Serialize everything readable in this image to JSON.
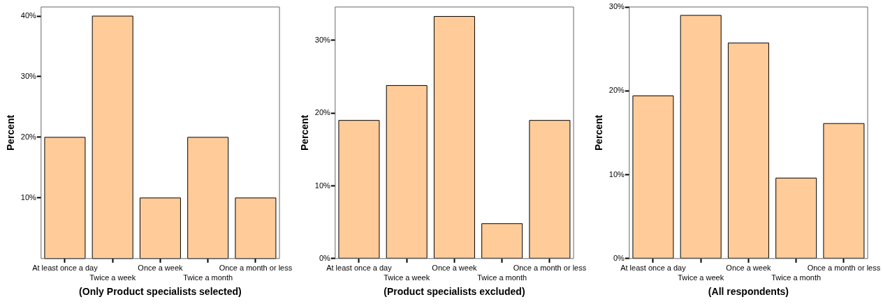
{
  "chart_data": [
    {
      "type": "bar",
      "xlabel": "(Only Product specialists selected)",
      "ylabel": "Percent",
      "categories": [
        "At least once a day",
        "Twice a week",
        "Once a week",
        "Twice a month",
        "Once a month or less"
      ],
      "values": [
        20,
        40,
        10,
        20,
        10
      ],
      "color": "#ffcc99",
      "ylim": [
        0,
        41.5
      ],
      "yticks": [
        {
          "value": 10,
          "label": "10%"
        },
        {
          "value": 20,
          "label": "20%"
        },
        {
          "value": 30,
          "label": "30%"
        },
        {
          "value": 40,
          "label": "40%"
        }
      ],
      "grid": false,
      "legend": false
    },
    {
      "type": "bar",
      "xlabel": "(Product specialists excluded)",
      "ylabel": "Percent",
      "categories": [
        "At least once a day",
        "Twice a week",
        "Once a week",
        "Twice a month",
        "Once a month or less"
      ],
      "values": [
        19.0,
        23.8,
        33.3,
        4.8,
        19.0
      ],
      "color": "#ffcc99",
      "ylim": [
        0,
        34.6
      ],
      "yticks": [
        {
          "value": 0,
          "label": "0%"
        },
        {
          "value": 10,
          "label": "10%"
        },
        {
          "value": 20,
          "label": "20%"
        },
        {
          "value": 30,
          "label": "30%"
        }
      ],
      "grid": false,
      "legend": false
    },
    {
      "type": "bar",
      "xlabel": "(All respondents)",
      "ylabel": "Percent",
      "categories": [
        "At least once a day",
        "Twice a week",
        "Once a week",
        "Twice a month",
        "Once a month or less"
      ],
      "values": [
        19.4,
        29.0,
        25.7,
        9.6,
        16.1
      ],
      "color": "#ffcc99",
      "ylim": [
        0,
        30
      ],
      "yticks": [
        {
          "value": 0,
          "label": "0%"
        },
        {
          "value": 10,
          "label": "10%"
        },
        {
          "value": 20,
          "label": "20%"
        },
        {
          "value": 30,
          "label": "30%"
        }
      ],
      "grid": false,
      "legend": false
    }
  ]
}
